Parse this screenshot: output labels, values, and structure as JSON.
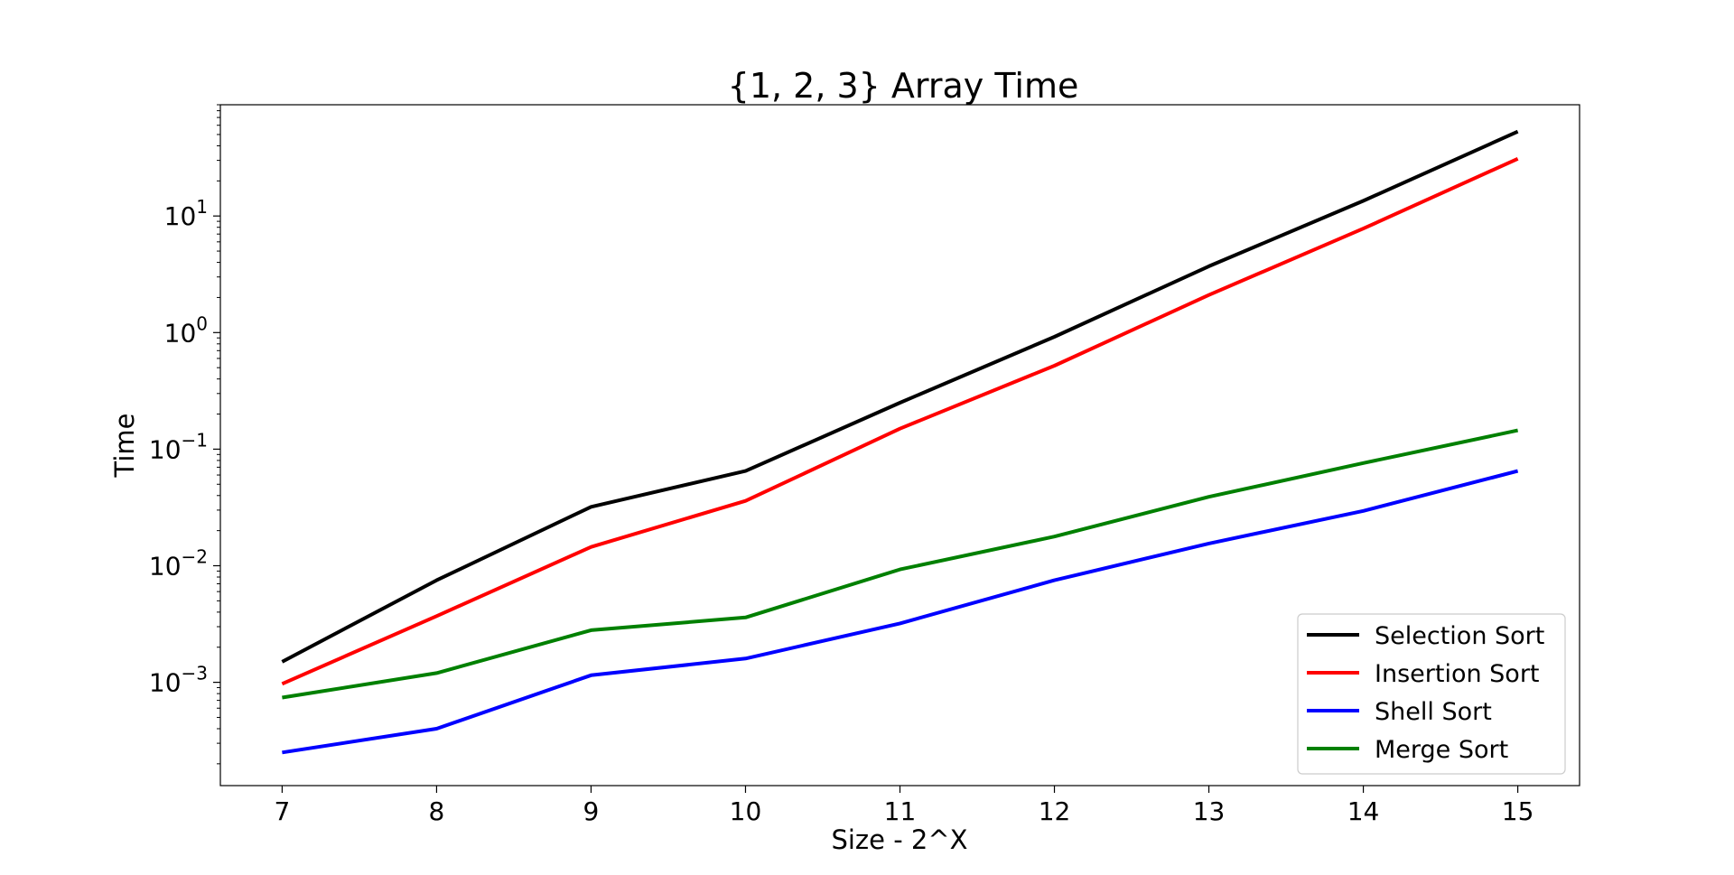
{
  "chart_data": {
    "type": "line",
    "title": "{1, 2, 3} Array Time",
    "xlabel": "Size - 2^X",
    "ylabel": "Time",
    "x": [
      7,
      8,
      9,
      10,
      11,
      12,
      13,
      14,
      15
    ],
    "xlim": [
      6.6,
      15.4
    ],
    "yscale": "log",
    "ylim": [
      0.00013,
      90
    ],
    "y_ticks": [
      {
        "value": 0.001,
        "base": "10",
        "exp": "−3"
      },
      {
        "value": 0.01,
        "base": "10",
        "exp": "−2"
      },
      {
        "value": 0.1,
        "base": "10",
        "exp": "−1"
      },
      {
        "value": 1,
        "base": "10",
        "exp": "0"
      },
      {
        "value": 10,
        "base": "10",
        "exp": "1"
      }
    ],
    "grid": false,
    "legend_position": "lower-right",
    "series": [
      {
        "name": "Selection Sort",
        "color": "#000000",
        "values": [
          0.0015,
          0.0075,
          0.032,
          0.065,
          0.25,
          0.92,
          3.7,
          13.5,
          53
        ]
      },
      {
        "name": "Insertion Sort",
        "color": "#ff0000",
        "values": [
          0.00097,
          0.0037,
          0.0145,
          0.036,
          0.15,
          0.52,
          2.1,
          7.8,
          31
        ]
      },
      {
        "name": "Shell Sort",
        "color": "#0000ff",
        "values": [
          0.00025,
          0.0004,
          0.00115,
          0.0016,
          0.0032,
          0.0075,
          0.0155,
          0.0295,
          0.065
        ]
      },
      {
        "name": "Merge Sort",
        "color": "#008000",
        "values": [
          0.00074,
          0.0012,
          0.0028,
          0.0036,
          0.0093,
          0.0178,
          0.039,
          0.076,
          0.145
        ]
      }
    ]
  }
}
